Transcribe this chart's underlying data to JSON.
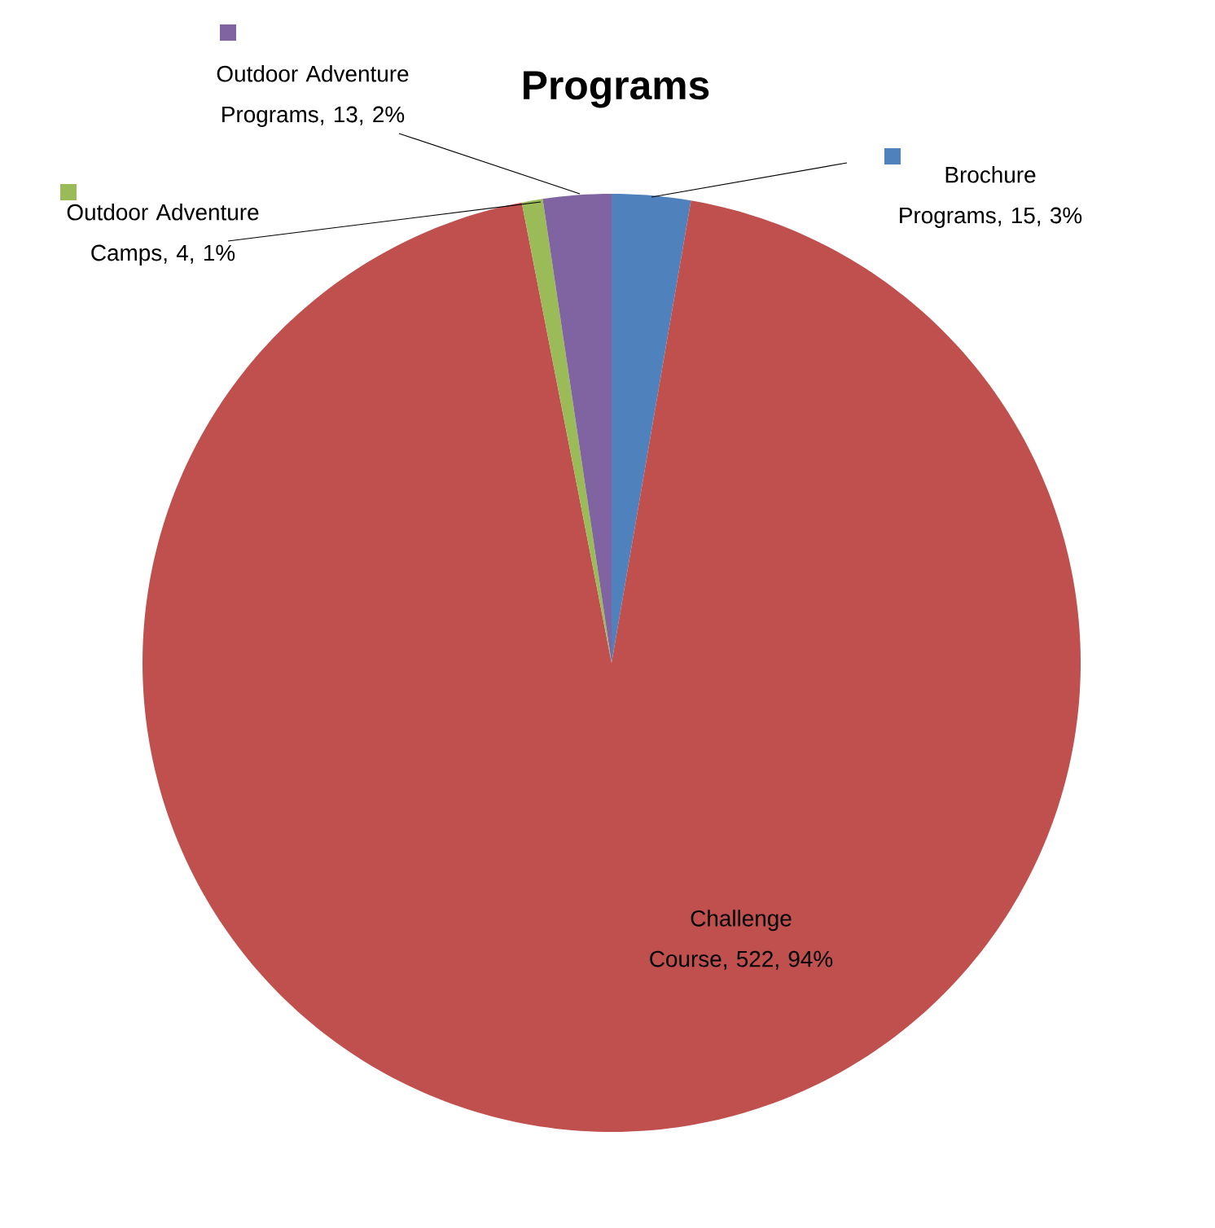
{
  "chart_data": {
    "type": "pie",
    "title": "Programs",
    "categories": [
      "Brochure Programs",
      "Challenge Course",
      "Outdoor Adventure Camps",
      "Outdoor Adventure Programs"
    ],
    "values": [
      15,
      522,
      4,
      13
    ],
    "value_labels": [
      ", 15, 3%",
      ", 522, 94%",
      ", 4, 1%",
      ", 13, 2%"
    ],
    "colors": [
      "#4f81bd",
      "#c0504d",
      "#9bbb59",
      "#8064a2"
    ],
    "legend": "top"
  }
}
